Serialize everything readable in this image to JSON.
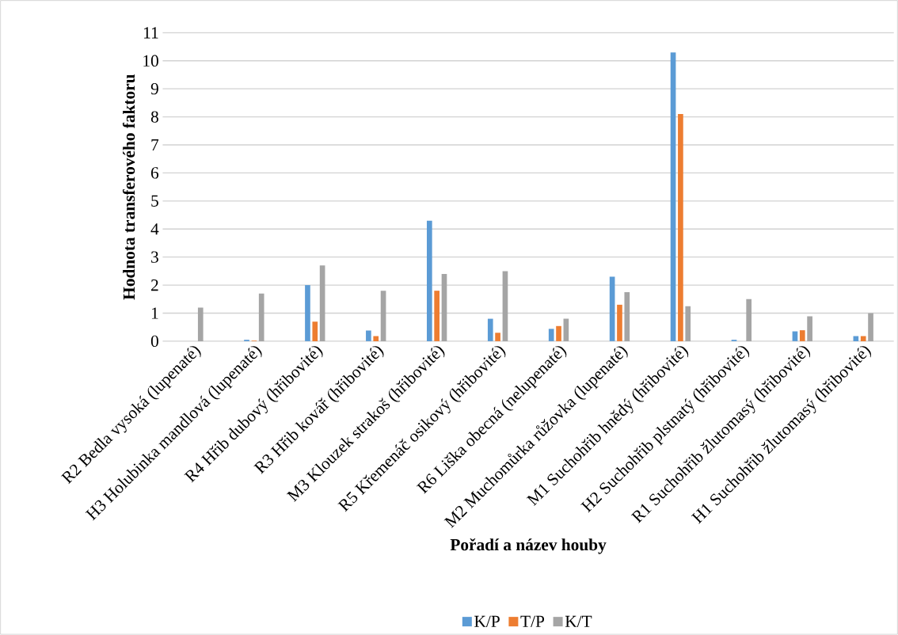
{
  "chart_data": {
    "type": "bar",
    "xlabel": "Pořadí a název houby",
    "ylabel": "Hodnota transferového faktoru",
    "categories": [
      "R2 Bedla vysoká (lupenaté)",
      "H3 Holubinka mandlová (lupenaté)",
      "R4 Hřib dubový (hřibovité)",
      "R3 Hřib kovář (hřibovité)",
      "M3 Klouzek strakoš (hřibovité)",
      "R5 Křemenáč osikový (hřibovité)",
      "R6 Liška obecná (nelupenaté)",
      "M2 Muchomůrka růžovka (lupenaté)",
      "M1 Suchohřib hnědý (hřibovité)",
      "H2 Suchohřib plstnatý (hřibovité)",
      "R1 Suchohřib žlutomasý (hřibovité)",
      "H1 Suchohřib žlutomasý (hřibovité)"
    ],
    "series": [
      {
        "name": "K/P",
        "color": "#5b9bd5",
        "values": [
          null,
          0.05,
          2.0,
          0.38,
          4.3,
          0.8,
          0.44,
          2.3,
          10.3,
          0.05,
          0.35,
          0.18
        ]
      },
      {
        "name": "T/P",
        "color": "#ed7d31",
        "values": [
          null,
          0.02,
          0.7,
          0.18,
          1.8,
          0.3,
          0.54,
          1.3,
          8.1,
          null,
          0.39,
          0.18
        ]
      },
      {
        "name": "K/T",
        "color": "#a5a5a5",
        "values": [
          1.2,
          1.7,
          2.7,
          1.8,
          2.4,
          2.5,
          0.8,
          1.75,
          1.25,
          1.5,
          0.89,
          1.0
        ]
      }
    ],
    "ylim": [
      0,
      11
    ],
    "yticks": [
      0,
      1,
      2,
      3,
      4,
      5,
      6,
      7,
      8,
      9,
      10,
      11
    ],
    "grid": "y",
    "legend": "bottom"
  }
}
